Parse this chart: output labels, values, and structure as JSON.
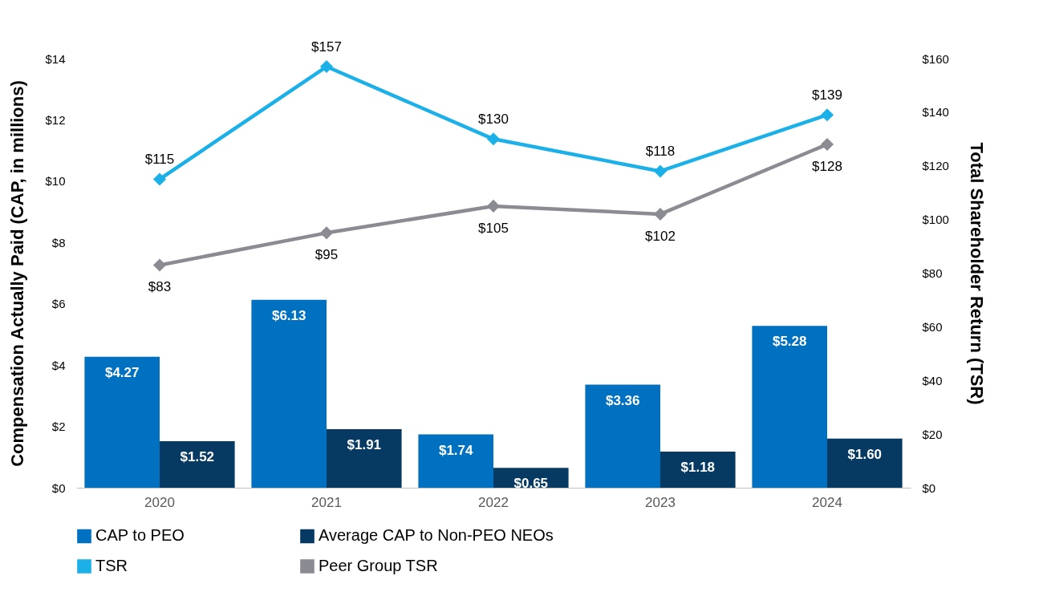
{
  "chart_data": {
    "type": "bar",
    "ylabel": "Compensation Actually Paid (CAP, in millions)",
    "y2label": "Total Shareholder Return (TSR)",
    "categories": [
      "2020",
      "2021",
      "2022",
      "2023",
      "2024"
    ],
    "series": [
      {
        "name": "CAP to PEO",
        "color": "#0070c0",
        "values": [
          4.27,
          6.13,
          1.74,
          3.36,
          5.28
        ],
        "value_labels": [
          "$4.27",
          "$6.13",
          "$1.74",
          "$3.36",
          "$5.28"
        ]
      },
      {
        "name": "Average CAP to Non-PEO NEOs",
        "color": "#063a63",
        "values": [
          1.52,
          1.91,
          0.65,
          1.18,
          1.6
        ],
        "value_labels": [
          "$1.52",
          "$1.91",
          "$0.65",
          "$1.18",
          "$1.60"
        ]
      },
      {
        "name": "TSR",
        "type": "line",
        "axis": "y2",
        "color": "#1cb0e8",
        "values": [
          115,
          157,
          130,
          118,
          139
        ],
        "value_labels": [
          "$115",
          "$157",
          "$130",
          "$118",
          "$139"
        ]
      },
      {
        "name": "Peer Group TSR",
        "type": "line",
        "axis": "y2",
        "color": "#8b8b94",
        "values": [
          83,
          95,
          105,
          102,
          128
        ],
        "value_labels": [
          "$83",
          "$95",
          "$105",
          "$102",
          "$128"
        ]
      }
    ],
    "ylim": [
      0,
      14
    ],
    "yticks": [
      {
        "value": 0,
        "label": "$0"
      },
      {
        "value": 2,
        "label": "$2"
      },
      {
        "value": 4,
        "label": "$4"
      },
      {
        "value": 6,
        "label": "$6"
      },
      {
        "value": 8,
        "label": "$8"
      },
      {
        "value": 10,
        "label": "$10"
      },
      {
        "value": 12,
        "label": "$12"
      },
      {
        "value": 14,
        "label": "$14"
      }
    ],
    "y2lim": [
      0,
      160
    ],
    "y2ticks": [
      {
        "value": 0,
        "label": "$0"
      },
      {
        "value": 20,
        "label": "$20"
      },
      {
        "value": 40,
        "label": "$40"
      },
      {
        "value": 60,
        "label": "$60"
      },
      {
        "value": 80,
        "label": "$80"
      },
      {
        "value": 100,
        "label": "$100"
      },
      {
        "value": 120,
        "label": "$120"
      },
      {
        "value": 140,
        "label": "$140"
      },
      {
        "value": 160,
        "label": "$160"
      }
    ],
    "marker": "diamond",
    "grid": false,
    "legend": "bottom"
  }
}
